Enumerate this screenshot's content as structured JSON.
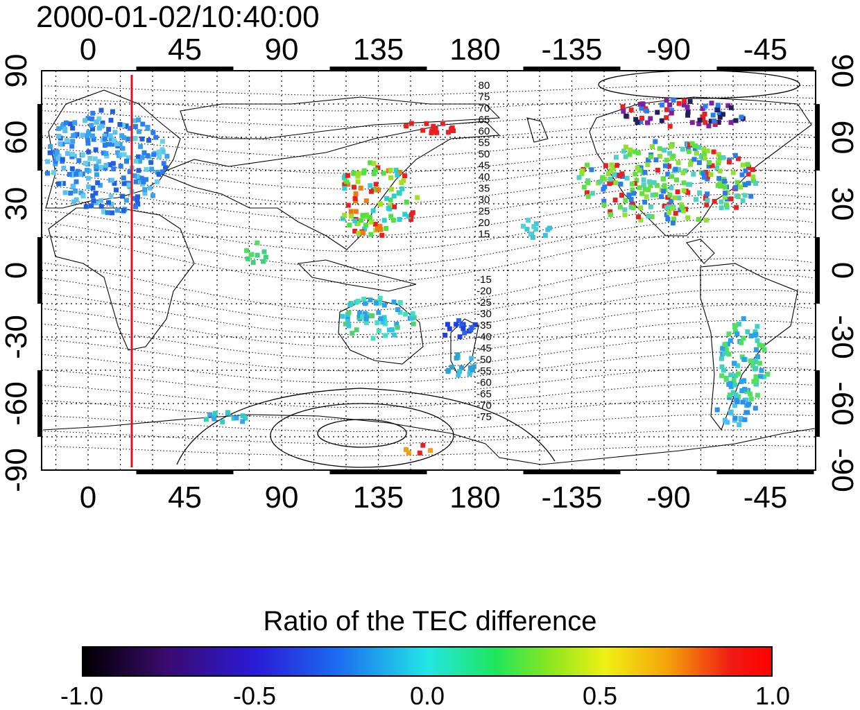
{
  "title": "2000-01-02/10:40:00",
  "map": {
    "lon_ticks": [
      "0",
      "45",
      "90",
      "135",
      "180",
      "-135",
      "-90",
      "-45"
    ],
    "lat_ticks_left": [
      "90",
      "60",
      "30",
      "0",
      "-30",
      "-60",
      "-90"
    ],
    "lat_ticks_right": [
      "90",
      "60",
      "30",
      "0",
      "-30",
      "-60",
      "-90"
    ],
    "contour_labels_north": [
      "80",
      "75",
      "70",
      "65",
      "60",
      "55",
      "50",
      "45",
      "40",
      "35",
      "30",
      "25",
      "20",
      "15"
    ],
    "contour_labels_south": [
      "-15",
      "-20",
      "-25",
      "-30",
      "-35",
      "-40",
      "-45",
      "-50",
      "-55",
      "-60",
      "-65",
      "-70",
      "-75"
    ],
    "marker_color": "#e0101a"
  },
  "colorbar": {
    "title": "Ratio of the TEC difference",
    "ticks": [
      "-1.0",
      "-0.5",
      "0.0",
      "0.5",
      "1.0"
    ]
  }
}
